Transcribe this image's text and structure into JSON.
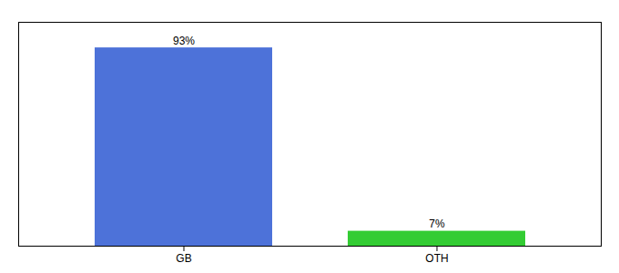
{
  "chart_data": {
    "type": "bar",
    "categories": [
      "GB",
      "OTH"
    ],
    "values": [
      93,
      7
    ],
    "value_labels": [
      "93%",
      "7%"
    ],
    "colors": [
      "#4d72d9",
      "#33cc33"
    ],
    "ylim": [
      0,
      105
    ],
    "data_labels": true,
    "tick_labels": "x",
    "grid": false
  }
}
